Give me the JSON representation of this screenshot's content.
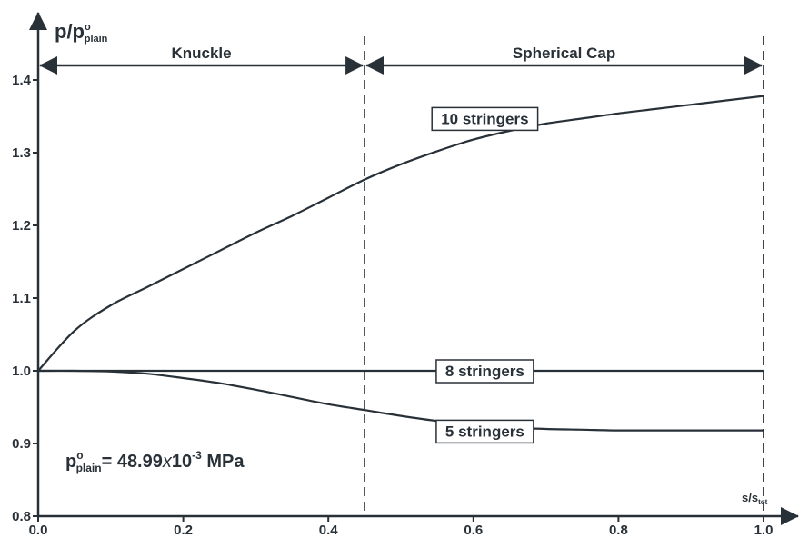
{
  "chart_data": {
    "type": "line",
    "ylabel": {
      "main": "p/p",
      "sup": "o",
      "sub": "plain"
    },
    "xlabel": {
      "main": "s/s",
      "sub": "tot"
    },
    "xlim": [
      0.0,
      1.0
    ],
    "ylim": [
      0.8,
      1.45
    ],
    "x_ticks": [
      0.0,
      0.2,
      0.4,
      0.6,
      0.8,
      1.0
    ],
    "x_tick_labels": [
      "0.0",
      "0.2",
      "0.4",
      "0.6",
      "0.8",
      "1.0"
    ],
    "y_ticks": [
      0.8,
      0.9,
      1.0,
      1.1,
      1.2,
      1.3,
      1.4
    ],
    "y_tick_labels": [
      "0.8",
      "0.9",
      "1.0",
      "1.1",
      "1.2",
      "1.3",
      "1.4"
    ],
    "grid": false,
    "boundary_x": [
      0.45,
      1.0
    ],
    "regions": [
      {
        "label": "Knuckle",
        "x_range": [
          0.0,
          0.45
        ]
      },
      {
        "label": "Spherical Cap",
        "x_range": [
          0.45,
          1.0
        ]
      }
    ],
    "series": [
      {
        "name": "10 stringers",
        "x": [
          0.0,
          0.05,
          0.1,
          0.15,
          0.2,
          0.25,
          0.3,
          0.35,
          0.4,
          0.45,
          0.5,
          0.55,
          0.6,
          0.65,
          0.7,
          0.75,
          0.8,
          0.85,
          0.9,
          0.95,
          1.0
        ],
        "y": [
          1.0,
          1.055,
          1.09,
          1.115,
          1.14,
          1.165,
          1.19,
          1.213,
          1.238,
          1.263,
          1.284,
          1.302,
          1.318,
          1.33,
          1.34,
          1.347,
          1.354,
          1.36,
          1.366,
          1.372,
          1.378
        ],
        "label_at": [
          0.8,
          1.347
        ]
      },
      {
        "name": "8 stringers",
        "x": [
          0.0,
          1.0
        ],
        "y": [
          1.0,
          1.0
        ],
        "label_at": [
          0.8,
          1.0
        ]
      },
      {
        "name": "5 stringers",
        "x": [
          0.0,
          0.05,
          0.1,
          0.15,
          0.2,
          0.25,
          0.3,
          0.35,
          0.4,
          0.45,
          0.5,
          0.55,
          0.6,
          0.65,
          0.7,
          0.75,
          0.8,
          0.85,
          0.9,
          0.95,
          1.0
        ],
        "y": [
          1.0,
          1.0,
          0.999,
          0.996,
          0.99,
          0.983,
          0.974,
          0.964,
          0.954,
          0.946,
          0.938,
          0.931,
          0.926,
          0.922,
          0.92,
          0.919,
          0.918,
          0.918,
          0.918,
          0.918,
          0.918
        ],
        "label_at": [
          0.8,
          0.917
        ]
      }
    ],
    "annotation": {
      "p": "p",
      "sup": "o",
      "sub": "plain",
      "value": "= 48.99",
      "x": "x",
      "ten": "10",
      "exp": "-3",
      "unit": " MPa"
    }
  }
}
